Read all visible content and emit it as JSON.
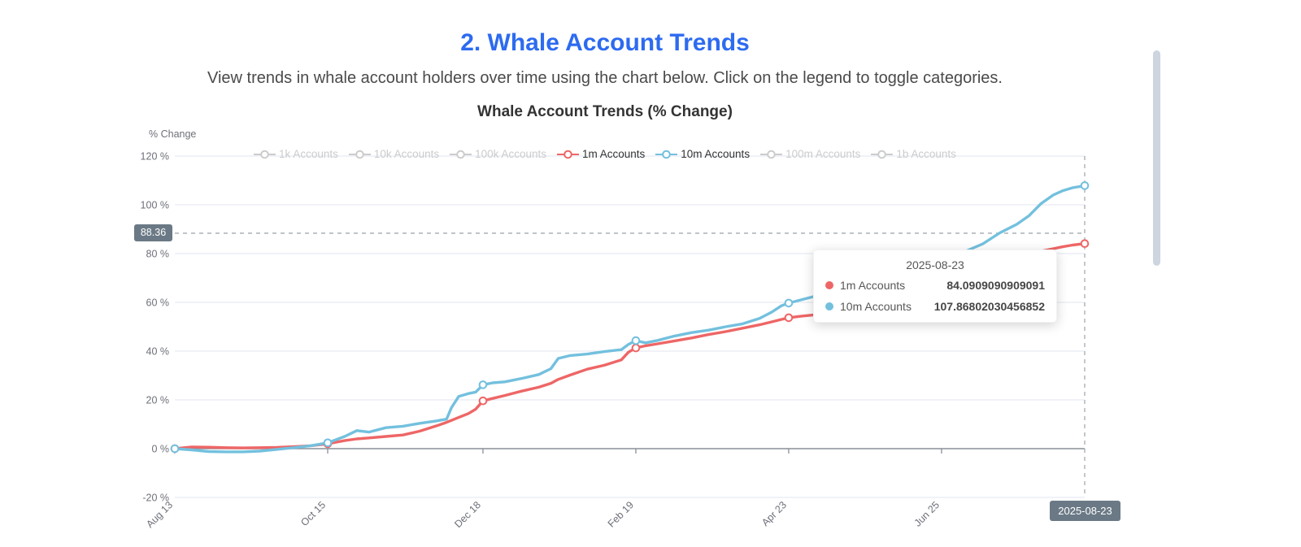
{
  "page": {
    "title": "2. Whale Account Trends",
    "title_color": "#2d6bf0",
    "subtitle": "View trends in whale account holders over time using the chart below. Click on the legend to toggle categories."
  },
  "chart_data": {
    "type": "line",
    "title": "Whale Account Trends (% Change)",
    "y_axis_name": "% Change",
    "ylabel_suffix": " %",
    "ylim": [
      -20,
      120
    ],
    "y_tick_values": [
      120,
      100,
      80,
      60,
      40,
      20,
      0,
      -20
    ],
    "grid": true,
    "legend_position": "top",
    "x_start_date": "2024-08-13",
    "x_end_date": "2025-08-23",
    "x_unit": "days since 2024-08-13",
    "x_total_days": 375,
    "x_ticks": [
      {
        "label": "Aug 13",
        "day": 0
      },
      {
        "label": "Oct 15",
        "day": 63
      },
      {
        "label": "Dec 18",
        "day": 127
      },
      {
        "label": "Feb 19",
        "day": 190
      },
      {
        "label": "Apr 23",
        "day": 253
      },
      {
        "label": "Jun 25",
        "day": 316
      }
    ],
    "legend": [
      {
        "label": "1k Accounts",
        "active": false
      },
      {
        "label": "10k Accounts",
        "active": false
      },
      {
        "label": "100k Accounts",
        "active": false
      },
      {
        "label": "1m Accounts",
        "active": true,
        "color": "#ee6666"
      },
      {
        "label": "10m Accounts",
        "active": true,
        "color": "#73c0de"
      },
      {
        "label": "100m Accounts",
        "active": false
      },
      {
        "label": "1b Accounts",
        "active": false
      }
    ],
    "legend_inactive_color": "#ccc",
    "marker_days": [
      0,
      63,
      127,
      190,
      253,
      375
    ],
    "series": [
      {
        "name": "1m Accounts",
        "color": "#ee6666",
        "points": [
          [
            0,
            0
          ],
          [
            7,
            0.7
          ],
          [
            14,
            0.6
          ],
          [
            21,
            0.4
          ],
          [
            28,
            0.3
          ],
          [
            35,
            0.4
          ],
          [
            42,
            0.5
          ],
          [
            49,
            0.8
          ],
          [
            56,
            1.2
          ],
          [
            63,
            2.0
          ],
          [
            70,
            3.3
          ],
          [
            75,
            4.0
          ],
          [
            80,
            4.4
          ],
          [
            87,
            5.0
          ],
          [
            94,
            5.6
          ],
          [
            101,
            7.2
          ],
          [
            108,
            9.4
          ],
          [
            112,
            10.8
          ],
          [
            114,
            11.6
          ],
          [
            117,
            12.8
          ],
          [
            121,
            14.4
          ],
          [
            124,
            16.2
          ],
          [
            127,
            19.6
          ],
          [
            131,
            20.6
          ],
          [
            136,
            21.8
          ],
          [
            143,
            23.6
          ],
          [
            150,
            25.2
          ],
          [
            155,
            26.8
          ],
          [
            158,
            28.4
          ],
          [
            163,
            30.2
          ],
          [
            170,
            32.6
          ],
          [
            177,
            34.2
          ],
          [
            184,
            36.4
          ],
          [
            187,
            39.6
          ],
          [
            190,
            41.3
          ],
          [
            194,
            42.2
          ],
          [
            199,
            43.0
          ],
          [
            206,
            44.2
          ],
          [
            213,
            45.4
          ],
          [
            220,
            46.8
          ],
          [
            227,
            48.0
          ],
          [
            234,
            49.4
          ],
          [
            241,
            50.8
          ],
          [
            246,
            52.0
          ],
          [
            250,
            53.0
          ],
          [
            253,
            53.7
          ],
          [
            258,
            54.3
          ],
          [
            263,
            54.8
          ],
          [
            270,
            56.5
          ],
          [
            277,
            58.5
          ],
          [
            284,
            61.0
          ],
          [
            291,
            63.0
          ],
          [
            298,
            65.5
          ],
          [
            305,
            67.5
          ],
          [
            312,
            69.5
          ],
          [
            319,
            71.5
          ],
          [
            326,
            73.5
          ],
          [
            333,
            75.5
          ],
          [
            340,
            77.0
          ],
          [
            347,
            78.5
          ],
          [
            352,
            80.0
          ],
          [
            357,
            81.0
          ],
          [
            362,
            82.0
          ],
          [
            366,
            82.8
          ],
          [
            370,
            83.5
          ],
          [
            375,
            84.0909090909091
          ]
        ]
      },
      {
        "name": "10m Accounts",
        "color": "#73c0de",
        "points": [
          [
            0,
            0
          ],
          [
            7,
            -0.5
          ],
          [
            14,
            -1.2
          ],
          [
            21,
            -1.3
          ],
          [
            28,
            -1.3
          ],
          [
            35,
            -1.0
          ],
          [
            42,
            -0.3
          ],
          [
            49,
            0.4
          ],
          [
            56,
            1.2
          ],
          [
            63,
            2.4
          ],
          [
            70,
            5.0
          ],
          [
            75,
            7.4
          ],
          [
            80,
            6.8
          ],
          [
            87,
            8.6
          ],
          [
            94,
            9.2
          ],
          [
            101,
            10.4
          ],
          [
            108,
            11.4
          ],
          [
            112,
            12.1
          ],
          [
            114,
            16.8
          ],
          [
            117,
            21.4
          ],
          [
            121,
            22.6
          ],
          [
            124,
            23.2
          ],
          [
            127,
            26.2
          ],
          [
            131,
            27.0
          ],
          [
            136,
            27.4
          ],
          [
            143,
            28.8
          ],
          [
            150,
            30.4
          ],
          [
            155,
            32.8
          ],
          [
            158,
            37.0
          ],
          [
            163,
            38.2
          ],
          [
            170,
            38.8
          ],
          [
            177,
            39.8
          ],
          [
            184,
            40.6
          ],
          [
            187,
            42.8
          ],
          [
            190,
            44.3
          ],
          [
            194,
            43.4
          ],
          [
            199,
            44.4
          ],
          [
            206,
            46.2
          ],
          [
            213,
            47.6
          ],
          [
            220,
            48.6
          ],
          [
            227,
            50.0
          ],
          [
            234,
            51.2
          ],
          [
            241,
            53.4
          ],
          [
            246,
            56.0
          ],
          [
            250,
            58.6
          ],
          [
            253,
            59.7
          ],
          [
            258,
            61.0
          ],
          [
            263,
            62.3
          ],
          [
            270,
            64.0
          ],
          [
            277,
            66.5
          ],
          [
            284,
            68.5
          ],
          [
            291,
            71.0
          ],
          [
            298,
            73.0
          ],
          [
            305,
            75.5
          ],
          [
            312,
            77.5
          ],
          [
            319,
            79.0
          ],
          [
            326,
            81.0
          ],
          [
            333,
            84.0
          ],
          [
            340,
            88.5
          ],
          [
            347,
            92.0
          ],
          [
            352,
            95.5
          ],
          [
            357,
            100.5
          ],
          [
            362,
            104.0
          ],
          [
            366,
            105.8
          ],
          [
            370,
            107.0
          ],
          [
            375,
            107.86802030456852
          ]
        ]
      }
    ]
  },
  "tooltip": {
    "date": "2025-08-23",
    "rows": [
      {
        "label": "1m Accounts",
        "color": "#ee6666",
        "value": "84.0909090909091"
      },
      {
        "label": "10m Accounts",
        "color": "#73c0de",
        "value": "107.86802030456852"
      }
    ]
  },
  "axis_pointer": {
    "y_label": "88.36",
    "y_value": 88.36,
    "x_label": "2025-08-23",
    "x_day": 375,
    "badge_color": "#6a7985"
  }
}
